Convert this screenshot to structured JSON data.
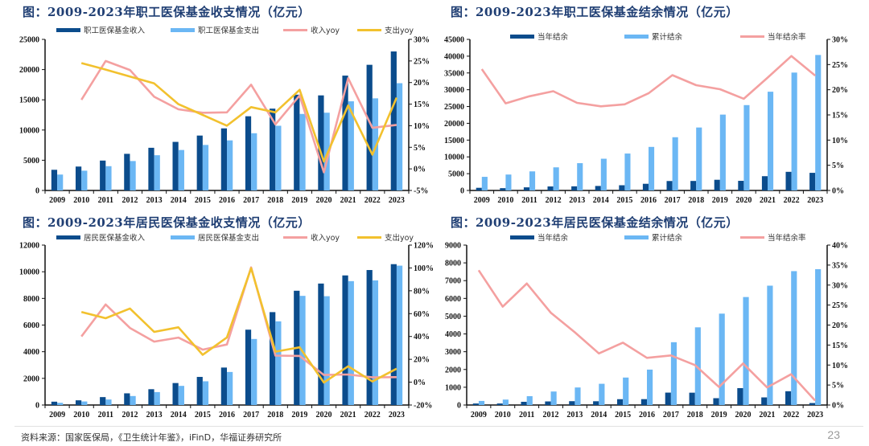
{
  "page": {
    "source": "资料来源：国家医保局，《卫生统计年鉴》，iFinD，华福证券研究所",
    "page_number": "23"
  },
  "colors": {
    "dark_bar": "#0b4c8c",
    "light_bar": "#6bb7f4",
    "pink_line": "#f4a0a0",
    "yellow_line": "#f2c12e"
  },
  "chart_data": [
    {
      "id": "employee-income-expenditure",
      "type": "bar+line",
      "title": "图：2009-2023年职工医保基金收支情况（亿元）",
      "categories": [
        "2009",
        "2010",
        "2011",
        "2012",
        "2013",
        "2014",
        "2015",
        "2016",
        "2017",
        "2018",
        "2019",
        "2020",
        "2021",
        "2022",
        "2023"
      ],
      "ylim": [
        0,
        25000
      ],
      "yticks": [
        "0",
        "5000",
        "10000",
        "15000",
        "20000",
        "25000"
      ],
      "y2lim": [
        -5,
        30
      ],
      "y2ticks": [
        "-5%",
        "0%",
        "5%",
        "10%",
        "15%",
        "20%",
        "25%",
        "30%"
      ],
      "legend_position": "top",
      "series": [
        {
          "name": "职工医保基金收入",
          "kind": "bar",
          "color": "#0b4c8c",
          "values": [
            3420,
            3955,
            4945,
            6062,
            7062,
            8038,
            9084,
            10274,
            12278,
            13538,
            15845,
            15732,
            19003,
            20793,
            23000
          ]
        },
        {
          "name": "职工医保基金支出",
          "kind": "bar",
          "color": "#6bb7f4",
          "values": [
            2630,
            3272,
            4018,
            4868,
            5830,
            6697,
            7532,
            8287,
            9467,
            10707,
            12663,
            12867,
            14752,
            15244,
            17750
          ]
        },
        {
          "name": "收入yoy",
          "kind": "line",
          "axis": "right",
          "color": "#f4a0a0",
          "values": [
            null,
            16.0,
            25.0,
            22.9,
            16.7,
            13.8,
            13.0,
            13.1,
            19.5,
            10.3,
            17.0,
            -0.8,
            21.0,
            9.5,
            10.2
          ]
        },
        {
          "name": "支出yoy",
          "kind": "line",
          "axis": "right",
          "color": "#f2c12e",
          "values": [
            null,
            24.5,
            23.0,
            21.4,
            19.8,
            15.0,
            12.5,
            10.0,
            14.3,
            13.1,
            18.3,
            1.7,
            14.7,
            3.3,
            16.5
          ]
        }
      ]
    },
    {
      "id": "employee-surplus",
      "type": "bar+line",
      "title": "图：2009-2023年职工医保基金结余情况（亿元）",
      "categories": [
        "2009",
        "2010",
        "2011",
        "2012",
        "2013",
        "2014",
        "2015",
        "2016",
        "2017",
        "2018",
        "2019",
        "2020",
        "2021",
        "2022",
        "2023"
      ],
      "ylim": [
        0,
        45000
      ],
      "yticks": [
        "0",
        "5000",
        "10000",
        "15000",
        "20000",
        "25000",
        "30000",
        "35000",
        "40000",
        "45000"
      ],
      "y2lim": [
        0,
        30
      ],
      "y2ticks": [
        "0%",
        "5%",
        "10%",
        "15%",
        "20%",
        "25%",
        "30%"
      ],
      "legend_position": "top",
      "series": [
        {
          "name": "当年结余",
          "kind": "bar",
          "color": "#0b4c8c",
          "values": [
            790,
            683,
            927,
            1194,
            1232,
            1341,
            1552,
            1987,
            2811,
            2831,
            3182,
            2865,
            4251,
            5549,
            5250
          ]
        },
        {
          "name": "累计结余",
          "kind": "bar",
          "color": "#6bb7f4",
          "values": [
            4055,
            4741,
            5683,
            6884,
            8129,
            9450,
            10997,
            12972,
            15851,
            18750,
            22593,
            25424,
            29410,
            35110,
            40350
          ]
        },
        {
          "name": "当年结余率",
          "kind": "line",
          "axis": "right",
          "color": "#f4a0a0",
          "values": [
            24.1,
            17.3,
            18.7,
            19.7,
            17.4,
            16.7,
            17.1,
            19.3,
            22.9,
            20.9,
            20.1,
            18.2,
            22.4,
            26.7,
            22.8
          ]
        }
      ]
    },
    {
      "id": "resident-income-expenditure",
      "type": "bar+line",
      "title": "图：2009-2023年居民医保基金收支情况（亿元）",
      "categories": [
        "2009",
        "2010",
        "2011",
        "2012",
        "2013",
        "2014",
        "2015",
        "2016",
        "2017",
        "2018",
        "2019",
        "2020",
        "2021",
        "2022",
        "2023"
      ],
      "ylim": [
        0,
        12000
      ],
      "yticks": [
        "0",
        "2000",
        "4000",
        "6000",
        "8000",
        "10000",
        "12000"
      ],
      "y2lim": [
        -20,
        120
      ],
      "y2ticks": [
        "-20%",
        "0%",
        "20%",
        "40%",
        "60%",
        "80%",
        "100%",
        "120%"
      ],
      "legend_position": "top",
      "series": [
        {
          "name": "居民医保基金收入",
          "kind": "bar",
          "color": "#0b4c8c",
          "values": [
            250,
            353,
            594,
            877,
            1187,
            1649,
            2109,
            2811,
            5653,
            6971,
            8575,
            9115,
            9725,
            10129,
            10570
          ]
        },
        {
          "name": "居民医保基金支出",
          "kind": "bar",
          "color": "#6bb7f4",
          "values": [
            165,
            267,
            413,
            675,
            971,
            1437,
            1781,
            2480,
            4955,
            6277,
            8191,
            8165,
            9296,
            9353,
            10458
          ]
        },
        {
          "name": "收入yoy",
          "kind": "line",
          "axis": "right",
          "color": "#f4a0a0",
          "values": [
            null,
            40.0,
            68.0,
            47.5,
            35.5,
            39.0,
            28.5,
            33.0,
            100.5,
            23.3,
            23.0,
            6.3,
            6.7,
            4.2,
            4.4
          ]
        },
        {
          "name": "支出yoy",
          "kind": "line",
          "axis": "right",
          "color": "#f2c12e",
          "values": [
            null,
            61.5,
            56.0,
            64.5,
            44.0,
            48.0,
            24.0,
            39.2,
            99.8,
            26.7,
            30.5,
            -0.3,
            13.9,
            0.6,
            11.8
          ]
        }
      ]
    },
    {
      "id": "resident-surplus",
      "type": "bar+line",
      "title": "图：2009-2023年居民医保基金结余情况（亿元）",
      "categories": [
        "2009",
        "2010",
        "2011",
        "2012",
        "2013",
        "2014",
        "2015",
        "2016",
        "2017",
        "2018",
        "2019",
        "2020",
        "2021",
        "2022",
        "2023"
      ],
      "ylim": [
        0,
        9000
      ],
      "yticks": [
        "0",
        "1000",
        "2000",
        "3000",
        "4000",
        "5000",
        "6000",
        "7000",
        "8000",
        "9000"
      ],
      "y2lim": [
        0,
        40
      ],
      "y2ticks": [
        "0%",
        "5%",
        "10%",
        "15%",
        "20%",
        "25%",
        "30%",
        "35%",
        "40%"
      ],
      "legend_position": "top",
      "series": [
        {
          "name": "当年结余",
          "kind": "bar",
          "color": "#0b4c8c",
          "values": [
            85,
            86,
            181,
            202,
            216,
            212,
            328,
            331,
            698,
            694,
            384,
            950,
            429,
            776,
            112
          ]
        },
        {
          "name": "累计结余",
          "kind": "bar",
          "color": "#6bb7f4",
          "values": [
            229,
            306,
            497,
            760,
            987,
            1195,
            1546,
            1993,
            3535,
            4372,
            5143,
            6077,
            6717,
            7534,
            7644
          ]
        },
        {
          "name": "当年结余率",
          "kind": "line",
          "axis": "right",
          "color": "#f4a0a0",
          "values": [
            33.7,
            24.6,
            30.4,
            23.1,
            18.2,
            12.9,
            15.6,
            11.8,
            12.4,
            10.0,
            4.5,
            10.4,
            4.4,
            7.7,
            1.1
          ]
        }
      ]
    }
  ]
}
